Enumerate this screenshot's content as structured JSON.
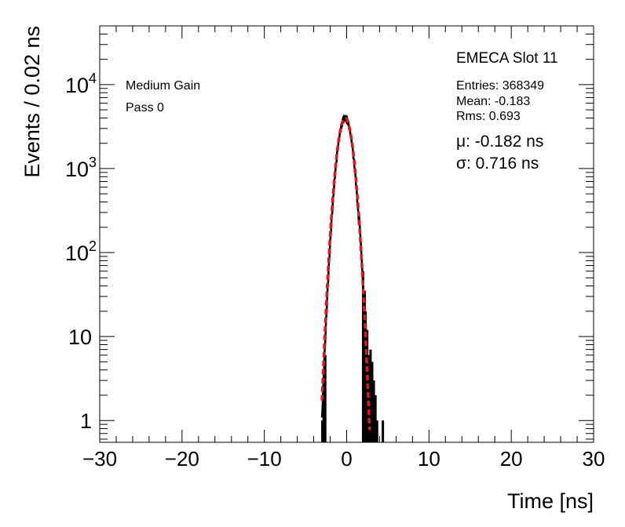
{
  "chart_data": {
    "type": "histogram",
    "title": "EMECA Slot 11",
    "xlabel": "Time [ns]",
    "ylabel": "Events / 0.02 ns",
    "xlim": [
      -30,
      30
    ],
    "ylim_log": [
      0.55,
      50000
    ],
    "yscale": "log",
    "x_ticks": [
      -30,
      -20,
      -10,
      0,
      10,
      20,
      30
    ],
    "x_tick_labels": [
      "−30",
      "−20",
      "−10",
      "0",
      "10",
      "20",
      "30"
    ],
    "y_ticks": [
      1,
      10,
      100,
      1000,
      10000
    ],
    "y_tick_labels": [
      {
        "base": "1",
        "exp": ""
      },
      {
        "base": "10",
        "exp": ""
      },
      {
        "base": "10",
        "exp": "2"
      },
      {
        "base": "10",
        "exp": "3"
      },
      {
        "base": "10",
        "exp": "4"
      }
    ],
    "annotations": {
      "gain": "Medium Gain",
      "pass": "Pass 0"
    },
    "stats": {
      "entries": "Entries: 368349",
      "mean": "Mean: -0.183",
      "rms": "Rms: 0.693"
    },
    "fit": {
      "mu_label": "μ: -0.182 ns",
      "sigma_label": "σ: 0.716 ns",
      "mu": -0.182,
      "sigma": 0.716,
      "amplitude": 4000,
      "color": "#e8141a"
    },
    "histogram": {
      "color": "#000000",
      "core_amplitude": 4000,
      "core_mu": -0.183,
      "core_sigma": 0.693,
      "x_start": -3.0,
      "x_end": 1.5,
      "tail_bins": [
        {
          "x": 2.0,
          "y": 60
        },
        {
          "x": 2.2,
          "y": 35
        },
        {
          "x": 2.3,
          "y": 20
        },
        {
          "x": 2.5,
          "y": 12
        },
        {
          "x": 2.7,
          "y": 6
        },
        {
          "x": 2.9,
          "y": 7
        },
        {
          "x": 3.1,
          "y": 5
        },
        {
          "x": 3.3,
          "y": 3
        },
        {
          "x": 3.5,
          "y": 2
        },
        {
          "x": 3.7,
          "y": 1
        },
        {
          "x": 4.4,
          "y": 1
        }
      ],
      "left_bins": [
        {
          "x": -2.95,
          "y": 1
        },
        {
          "x": -2.8,
          "y": 2
        },
        {
          "x": -2.7,
          "y": 4
        },
        {
          "x": -2.6,
          "y": 6
        }
      ]
    }
  }
}
